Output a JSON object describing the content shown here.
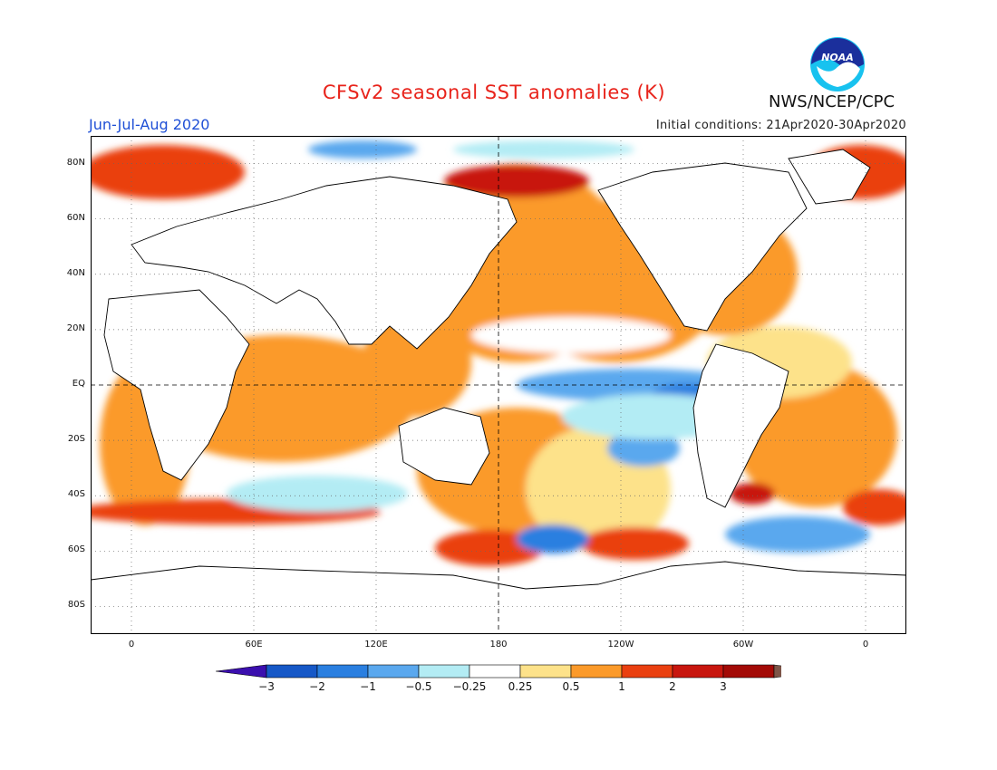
{
  "title": "CFSv2 seasonal SST anomalies (K)",
  "season": "Jun-Jul-Aug 2020",
  "initial_conditions": "Initial conditions: 21Apr2020-30Apr2020",
  "agency": "NWS/NCEP/CPC",
  "logo_text": "NOAA",
  "map": {
    "lat_ticks": [
      {
        "label": "80N",
        "lat": 80
      },
      {
        "label": "60N",
        "lat": 60
      },
      {
        "label": "40N",
        "lat": 40
      },
      {
        "label": "20N",
        "lat": 20
      },
      {
        "label": "EQ",
        "lat": 0
      },
      {
        "label": "20S",
        "lat": -20
      },
      {
        "label": "40S",
        "lat": -40
      },
      {
        "label": "60S",
        "lat": -60
      },
      {
        "label": "80S",
        "lat": -80
      }
    ],
    "lon_ticks": [
      {
        "label": "0",
        "lon": 0
      },
      {
        "label": "60E",
        "lon": 60
      },
      {
        "label": "120E",
        "lon": 120
      },
      {
        "label": "180",
        "lon": 180
      },
      {
        "label": "120W",
        "lon": 240
      },
      {
        "label": "60W",
        "lon": 300
      },
      {
        "label": "0",
        "lon": 360
      }
    ],
    "lon_range": [
      -20,
      380
    ],
    "lat_range": [
      -90,
      90
    ]
  },
  "colorbar": {
    "labels": [
      "−3",
      "−2",
      "−1",
      "−0.5",
      "−0.25",
      "0.25",
      "0.5",
      "1",
      "2",
      "3"
    ],
    "colors": [
      "#3b0fae",
      "#1658c7",
      "#2a7fe0",
      "#5aa8ee",
      "#b3ecf4",
      "#ffffff",
      "#fde28a",
      "#fb9a2a",
      "#ea4010",
      "#c8160e",
      "#a30a06",
      "#7d5548"
    ]
  },
  "chart_data": {
    "type": "heatmap",
    "title": "CFSv2 seasonal SST anomalies (K)",
    "xlabel": "",
    "ylabel": "",
    "levels": [
      -3,
      -2,
      -1,
      -0.5,
      -0.25,
      0.25,
      0.5,
      1,
      2,
      3
    ]
  }
}
